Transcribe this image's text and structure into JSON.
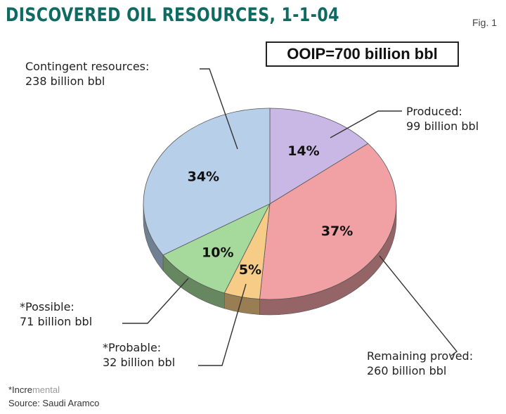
{
  "header": {
    "title": "DISCOVERED OIL RESOURCES, 1-1-04",
    "fig": "Fig. 1"
  },
  "ooip": "OOIP=700 billion bbl",
  "footnote": {
    "lead": "*Incre",
    "rest": "mental"
  },
  "source": "Source: Saudi Aramco",
  "chart_data": {
    "type": "pie",
    "title": "DISCOVERED OIL RESOURCES, 1-1-04",
    "total_label": "OOIP=700 billion bbl",
    "slices": [
      {
        "name": "Produced:",
        "value_label": "99 billion bbl",
        "value": 99,
        "percent_label": "14%",
        "color": "#c9b8e6"
      },
      {
        "name": "Remaining proved:",
        "value_label": "260 billion bbl",
        "value": 260,
        "percent_label": "37%",
        "color": "#f1a1a4"
      },
      {
        "name": "*Probable:",
        "value_label": "32 billion bbl",
        "value": 32,
        "percent_label": "5%",
        "color": "#f7cc86"
      },
      {
        "name": "*Possible:",
        "value_label": "71 billion bbl",
        "value": 71,
        "percent_label": "10%",
        "color": "#a6d99c"
      },
      {
        "name": "Contingent resources:",
        "value_label": "238 billion bbl",
        "value": 238,
        "percent_label": "34%",
        "color": "#b7cfe8"
      }
    ]
  }
}
